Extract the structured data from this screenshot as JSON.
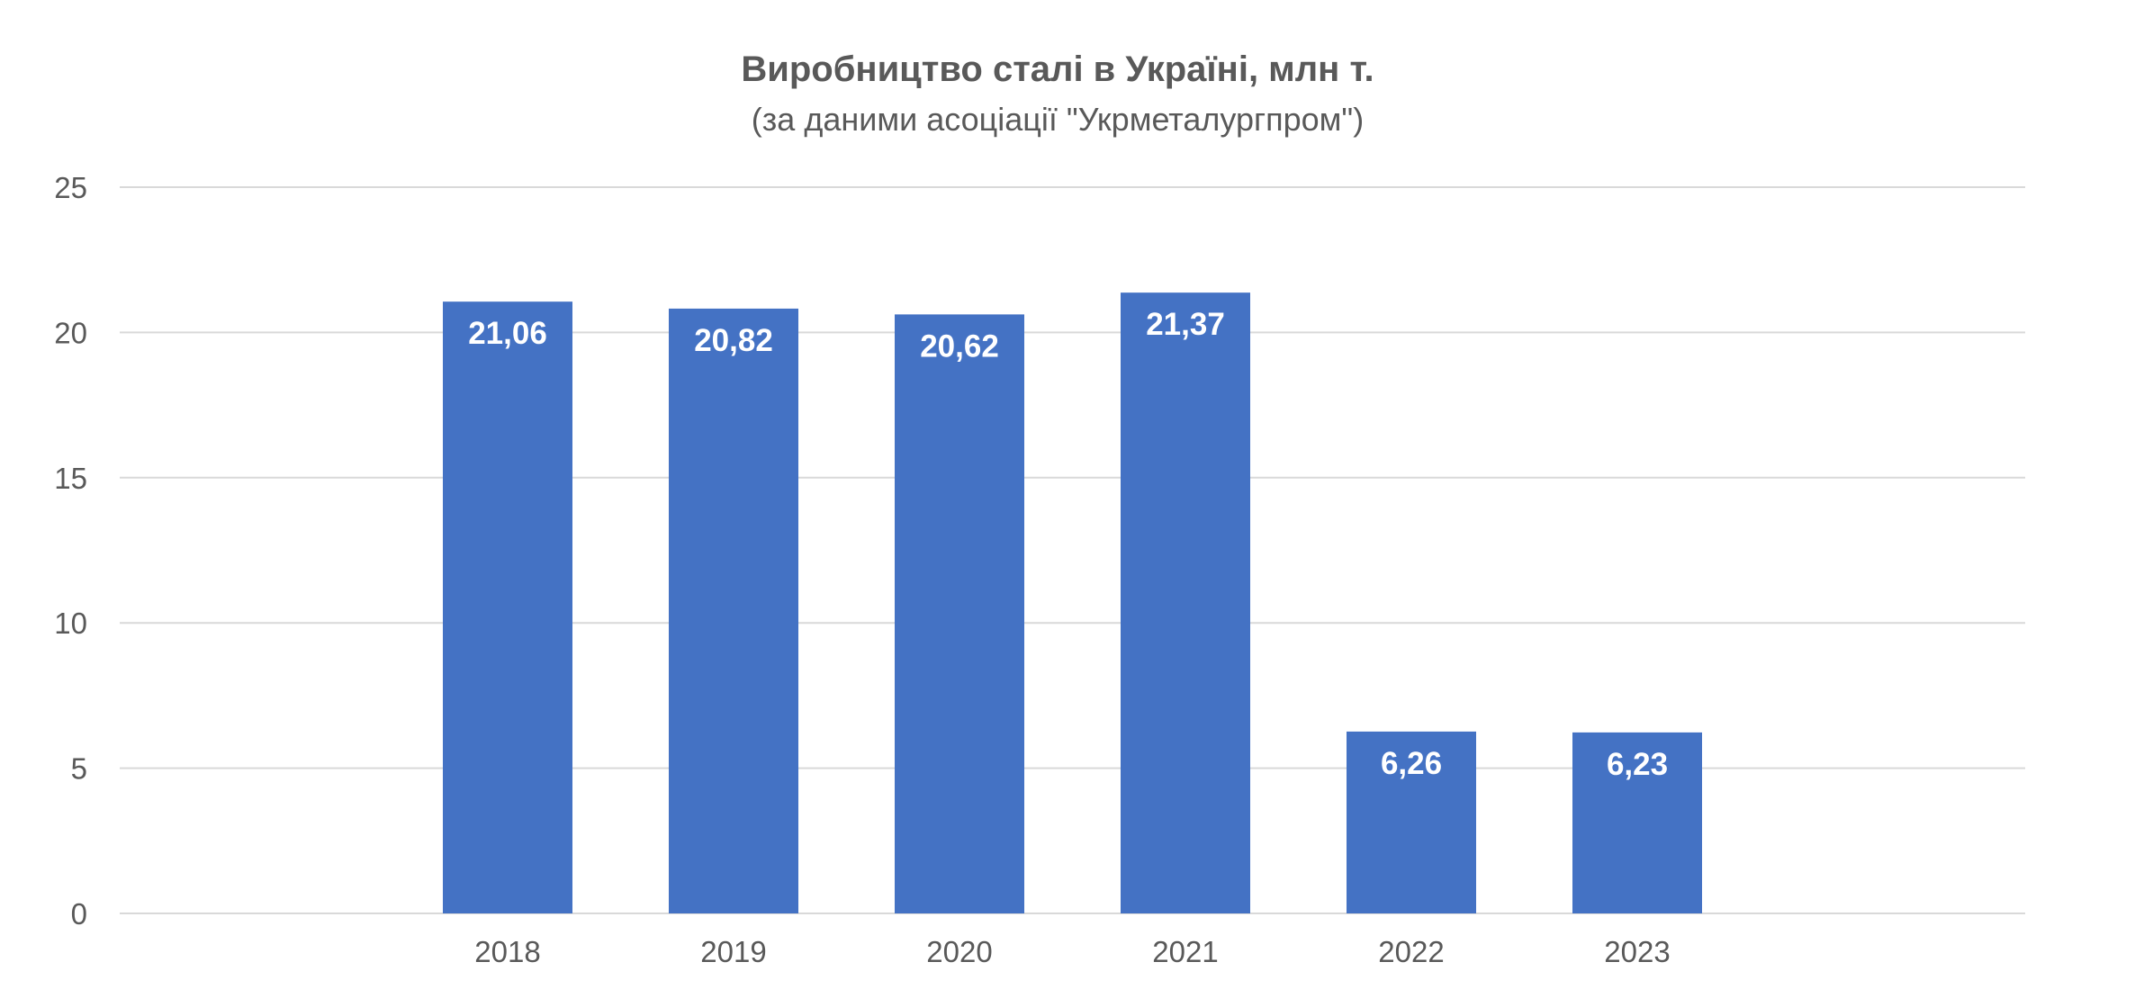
{
  "chart_data": {
    "type": "bar",
    "title": "Виробництво сталі в Україні, млн т.",
    "subtitle": "(за даними асоціації \"Укрметалургпром\")",
    "categories": [
      "2018",
      "2019",
      "2020",
      "2021",
      "2022",
      "2023"
    ],
    "values": [
      21.06,
      20.82,
      20.62,
      21.37,
      6.26,
      6.23
    ],
    "data_labels": [
      "21,06",
      "20,82",
      "20,62",
      "21,37",
      "6,26",
      "6,23"
    ],
    "ylim": [
      0,
      25
    ],
    "yticks": [
      "0",
      "5",
      "10",
      "15",
      "20",
      "25"
    ],
    "grid": true,
    "legend": "none",
    "bar_color": "#4472C4"
  }
}
